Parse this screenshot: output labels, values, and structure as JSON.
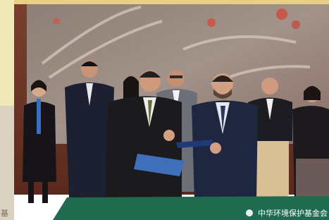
{
  "photo": {
    "watermark": "中华环境保护基金会",
    "left_edge_text": "基"
  }
}
